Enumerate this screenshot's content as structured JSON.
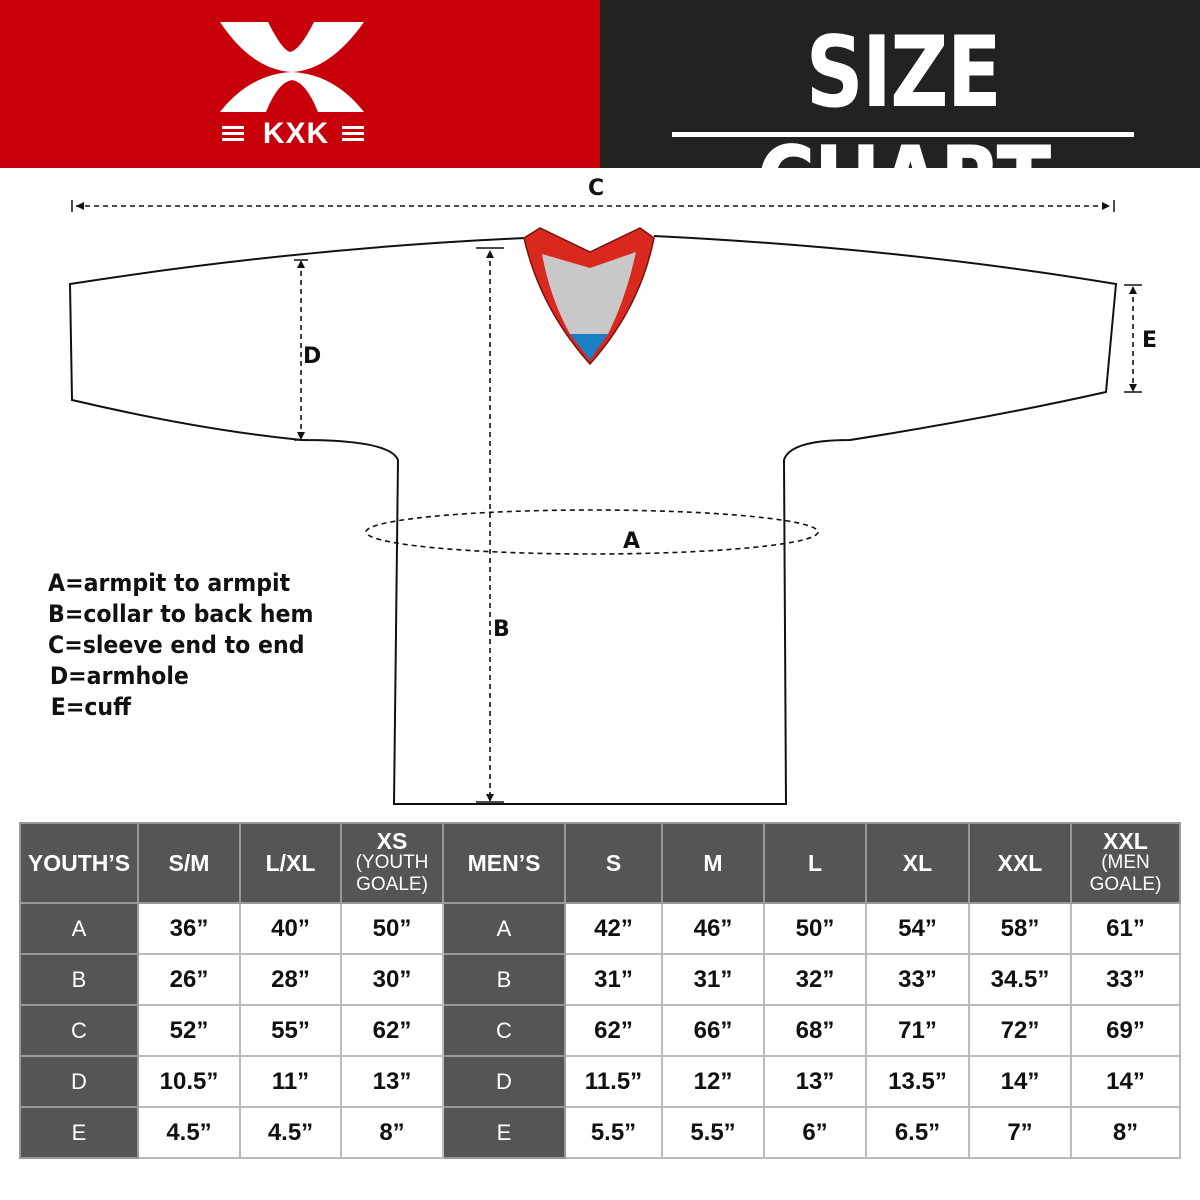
{
  "brand": {
    "logo_text": "KXK",
    "colors": {
      "red": "#c8000a",
      "dark": "#222222",
      "table_header": "#555555"
    }
  },
  "header": {
    "title": "SIZE CHART"
  },
  "diagram": {
    "labels": {
      "a": "A",
      "b": "B",
      "c": "C",
      "d": "D",
      "e": "E"
    }
  },
  "legend": [
    "A=armpit to armpit",
    "B=collar to back hem",
    "C=sleeve end to end",
    "D=armhole",
    "E=cuff"
  ],
  "table": {
    "headers": [
      {
        "main": "YOUTH’S",
        "sub": ""
      },
      {
        "main": "S/M",
        "sub": ""
      },
      {
        "main": "L/XL",
        "sub": ""
      },
      {
        "main": "XS",
        "sub": "(YOUTH GOALE)"
      },
      {
        "main": "MEN’S",
        "sub": ""
      },
      {
        "main": "S",
        "sub": ""
      },
      {
        "main": "M",
        "sub": ""
      },
      {
        "main": "L",
        "sub": ""
      },
      {
        "main": "XL",
        "sub": ""
      },
      {
        "main": "XXL",
        "sub": ""
      },
      {
        "main": "XXL",
        "sub": "(MEN GOALE)"
      }
    ],
    "rows": [
      {
        "label": "A",
        "youth": [
          "36”",
          "40”",
          "50”"
        ],
        "mens": [
          "42”",
          "46”",
          "50”",
          "54”",
          "58”",
          "61”"
        ]
      },
      {
        "label": "B",
        "youth": [
          "26”",
          "28”",
          "30”"
        ],
        "mens": [
          "31”",
          "31”",
          "32”",
          "33”",
          "34.5”",
          "33”"
        ]
      },
      {
        "label": "C",
        "youth": [
          "52”",
          "55”",
          "62”"
        ],
        "mens": [
          "62”",
          "66”",
          "68”",
          "71”",
          "72”",
          "69”"
        ]
      },
      {
        "label": "D",
        "youth": [
          "10.5”",
          "11”",
          "13”"
        ],
        "mens": [
          "11.5”",
          "12”",
          "13”",
          "13.5”",
          "14”",
          "14”"
        ]
      },
      {
        "label": "E",
        "youth": [
          "4.5”",
          "4.5”",
          "8”"
        ],
        "mens": [
          "5.5”",
          "5.5”",
          "6”",
          "6.5”",
          "7”",
          "8”"
        ]
      }
    ]
  }
}
